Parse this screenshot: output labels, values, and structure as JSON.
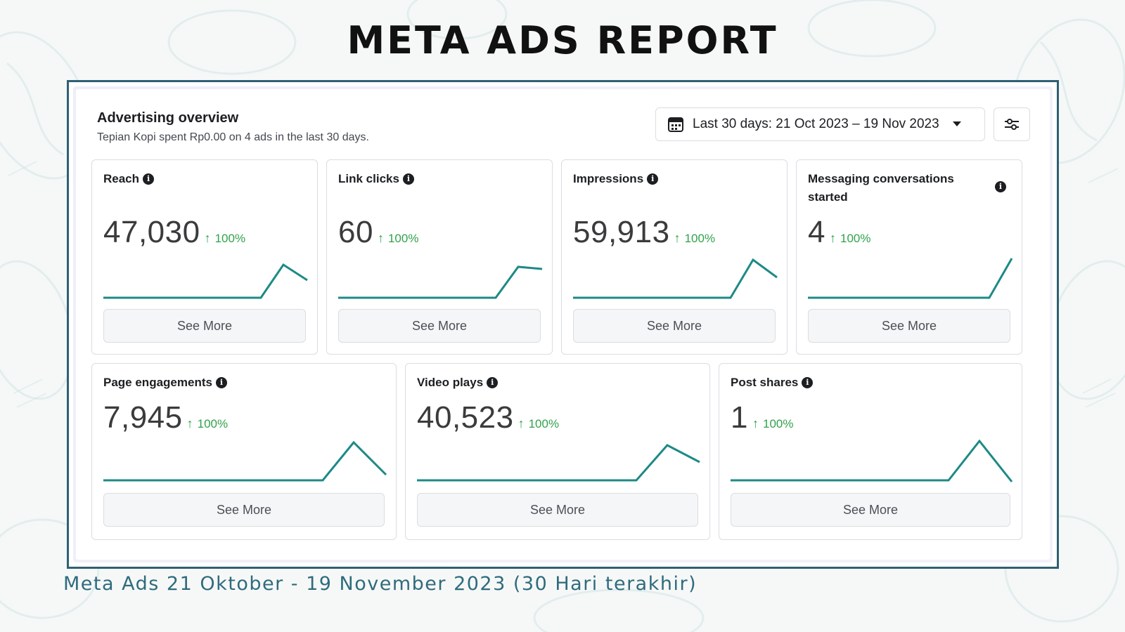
{
  "page": {
    "title": "META ADS REPORT",
    "caption": "Meta Ads 21 Oktober - 19 November 2023 (30 Hari terakhir)"
  },
  "overview": {
    "title": "Advertising overview",
    "subtitle": "Tepian Kopi spent Rp0.00 on 4 ads in the last 30 days.",
    "date_range_label": "Last 30 days: 21 Oct 2023 – 19 Nov 2023"
  },
  "colors": {
    "frame": "#2f6074",
    "trend": "#1d8a86",
    "positive": "#31a24c",
    "caption": "#2f6b7c"
  },
  "cards": [
    {
      "label": "Reach",
      "value": "47,030",
      "delta": "100%",
      "button": "See More"
    },
    {
      "label": "Link clicks",
      "value": "60",
      "delta": "100%",
      "button": "See More"
    },
    {
      "label": "Impressions",
      "value": "59,913",
      "delta": "100%",
      "button": "See More"
    },
    {
      "label": "Messaging conversations started",
      "value": "4",
      "delta": "100%",
      "button": "See More"
    },
    {
      "label": "Page engagements",
      "value": "7,945",
      "delta": "100%",
      "button": "See More"
    },
    {
      "label": "Video plays",
      "value": "40,523",
      "delta": "100%",
      "button": "See More"
    },
    {
      "label": "Post shares",
      "value": "1",
      "delta": "100%",
      "button": "See More"
    }
  ],
  "icons": {
    "calendar": "calendar-icon",
    "caret": "caret-down-icon",
    "filter": "sliders-icon",
    "info": "info-icon",
    "trend_up": "arrow-up-icon"
  }
}
